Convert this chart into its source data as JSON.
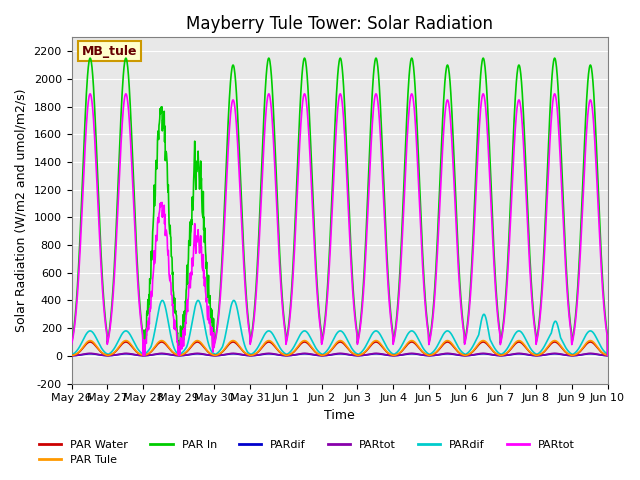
{
  "title": "Mayberry Tule Tower: Solar Radiation",
  "xlabel": "Time",
  "ylabel": "Solar Radiation (W/m2 and umol/m2/s)",
  "ylim": [
    -200,
    2300
  ],
  "bg_color": "#e8e8e8",
  "legend_label": "MB_tule",
  "legend_bg": "#ffffcc",
  "legend_border": "#cc9900",
  "series": {
    "PAR Water": {
      "color": "#cc0000",
      "lw": 1.5
    },
    "PAR Tule": {
      "color": "#ff9900",
      "lw": 1.5
    },
    "PAR In": {
      "color": "#00cc00",
      "lw": 1.5
    },
    "PARdif_blue": {
      "color": "#0000cc",
      "lw": 1.5
    },
    "PARtot_purple": {
      "color": "#8800aa",
      "lw": 1.5
    },
    "PARdif_cyan": {
      "color": "#00cccc",
      "lw": 1.5
    },
    "PARtot_mag": {
      "color": "#ff00ff",
      "lw": 1.5
    }
  },
  "xtick_labels": [
    "May 26",
    "May 27",
    "May 28",
    "May 29",
    "May 30",
    "May 31",
    "Jun 1",
    "Jun 2",
    "Jun 3",
    "Jun 4",
    "Jun 5",
    "Jun 6",
    "Jun 7",
    "Jun 8",
    "Jun 9",
    "Jun 10"
  ],
  "ytick_values": [
    -200,
    0,
    200,
    400,
    600,
    800,
    1000,
    1200,
    1400,
    1600,
    1800,
    2000,
    2200
  ]
}
